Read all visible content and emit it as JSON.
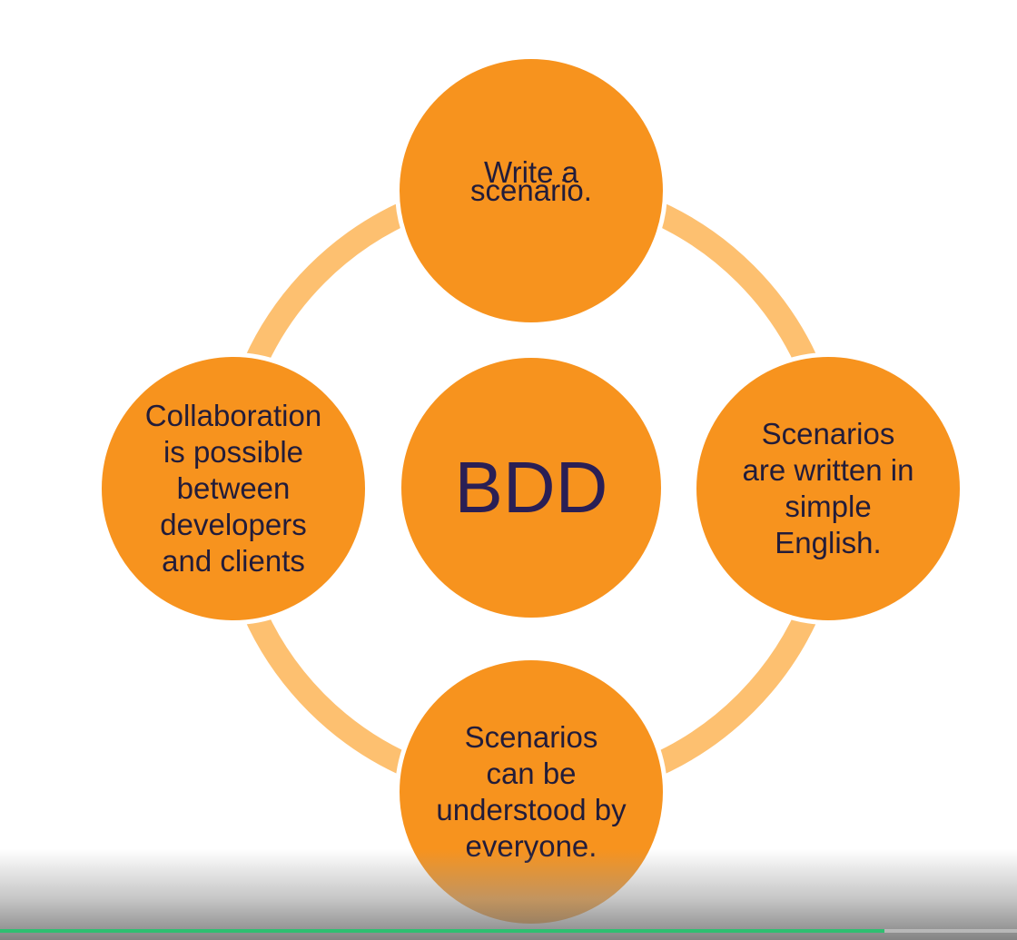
{
  "diagram": {
    "center": {
      "label": "BDD"
    },
    "nodes": [
      {
        "id": "top",
        "lines": [
          "Write a",
          "scenario."
        ]
      },
      {
        "id": "right",
        "lines": [
          "Scenarios",
          "are written in",
          "simple",
          "English."
        ]
      },
      {
        "id": "bottom",
        "lines": [
          "Scenarios",
          "can be",
          "understood by",
          "everyone."
        ]
      },
      {
        "id": "left",
        "lines": [
          "Collaboration",
          "is possible",
          "between",
          "developers",
          "and clients"
        ]
      }
    ],
    "colors": {
      "node_fill": "#f7931e",
      "node_border": "#ffffff",
      "ring": "#fdc070",
      "text": "#221c3a",
      "center_text": "#2a1f55"
    }
  },
  "video": {
    "progress_fraction": 0.87,
    "progress_color": "#2fbf71"
  }
}
